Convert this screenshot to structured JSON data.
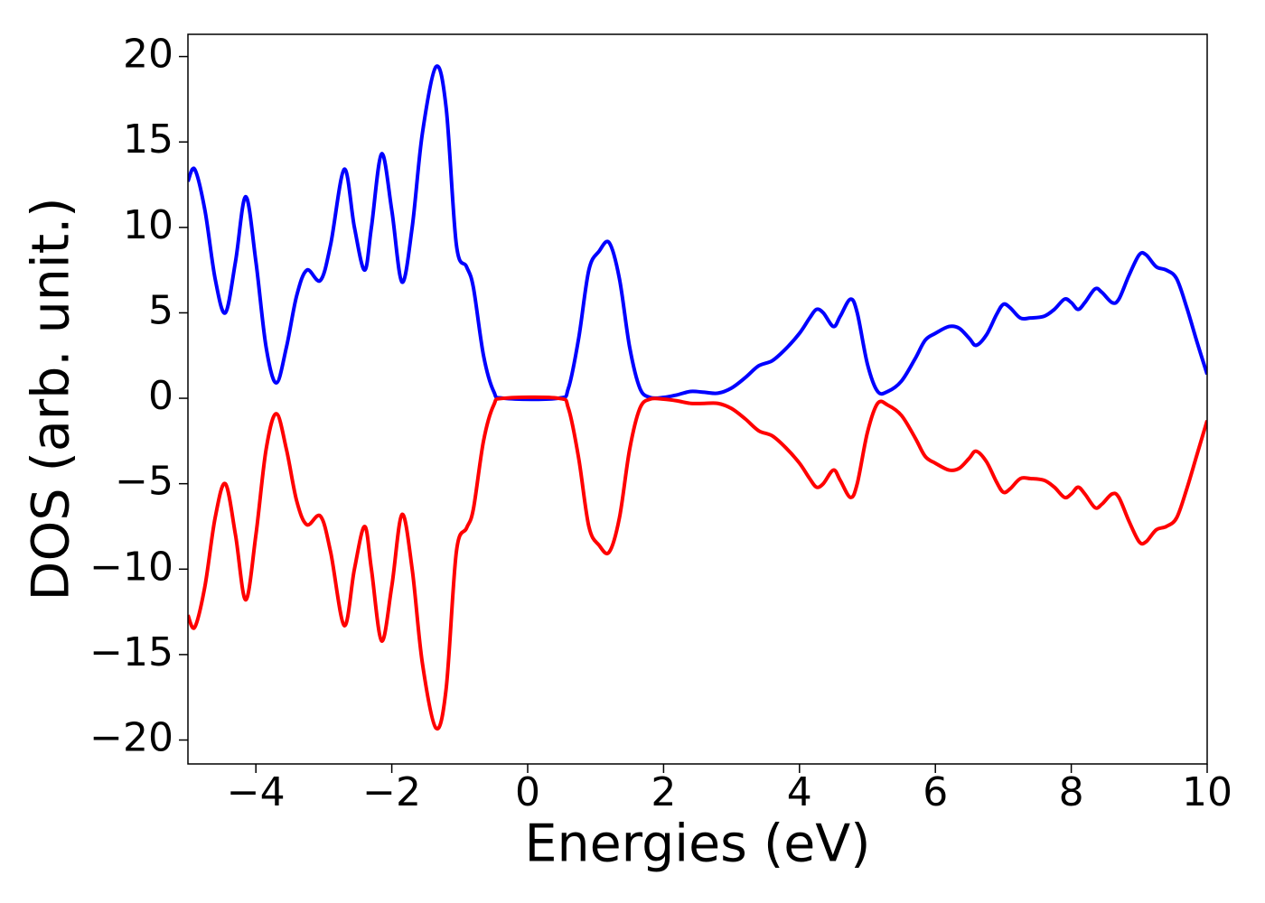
{
  "chart_data": {
    "type": "line",
    "xlabel": "Energies (eV)",
    "ylabel": "DOS (arb. unit.)",
    "x": [
      -5.0,
      -4.9,
      -4.75,
      -4.6,
      -4.45,
      -4.3,
      -4.15,
      -4.0,
      -3.85,
      -3.7,
      -3.55,
      -3.4,
      -3.25,
      -3.05,
      -2.9,
      -2.7,
      -2.55,
      -2.4,
      -2.3,
      -2.15,
      -2.0,
      -1.85,
      -1.7,
      -1.55,
      -1.35,
      -1.2,
      -1.05,
      -0.9,
      -0.8,
      -0.65,
      -0.5,
      -0.35,
      0.45,
      0.6,
      0.75,
      0.9,
      1.05,
      1.2,
      1.35,
      1.5,
      1.65,
      1.8,
      2.0,
      2.2,
      2.4,
      2.6,
      2.8,
      3.0,
      3.2,
      3.4,
      3.6,
      3.8,
      4.0,
      4.15,
      4.25,
      4.35,
      4.5,
      4.6,
      4.75,
      4.85,
      5.0,
      5.15,
      5.3,
      5.5,
      5.7,
      5.85,
      6.0,
      6.2,
      6.35,
      6.5,
      6.6,
      6.75,
      6.9,
      7.0,
      7.1,
      7.25,
      7.4,
      7.6,
      7.75,
      7.9,
      8.0,
      8.1,
      8.2,
      8.35,
      8.45,
      8.6,
      8.7,
      8.85,
      9.0,
      9.1,
      9.25,
      9.4,
      9.55,
      9.7,
      9.85,
      10.0
    ],
    "series": [
      {
        "color": "#0000ff",
        "values": [
          12.7,
          13.4,
          11,
          7,
          5.0,
          8,
          11.8,
          8,
          3,
          0.9,
          3,
          6,
          7.5,
          6.9,
          9,
          13.4,
          10,
          7.5,
          10,
          14.3,
          11,
          6.8,
          10,
          15.5,
          19.4,
          17,
          9,
          7.7,
          6.5,
          2.5,
          0.4,
          0.0,
          0.0,
          0.6,
          3.5,
          7.5,
          8.6,
          9.1,
          7,
          3,
          0.6,
          0.05,
          0.05,
          0.2,
          0.4,
          0.35,
          0.3,
          0.6,
          1.2,
          1.9,
          2.2,
          2.9,
          3.8,
          4.7,
          5.2,
          5.0,
          4.2,
          4.8,
          5.8,
          5.0,
          2.0,
          0.4,
          0.4,
          1.0,
          2.3,
          3.4,
          3.8,
          4.2,
          4.1,
          3.5,
          3.1,
          3.7,
          4.9,
          5.5,
          5.3,
          4.7,
          4.7,
          4.8,
          5.2,
          5.8,
          5.6,
          5.2,
          5.6,
          6.4,
          6.2,
          5.6,
          5.8,
          7.2,
          8.4,
          8.4,
          7.7,
          7.5,
          7.0,
          5.3,
          3.3,
          1.4
        ]
      },
      {
        "color": "#ff0000",
        "values": [
          -12.7,
          -13.4,
          -11,
          -7,
          -5.0,
          -8,
          -11.8,
          -8,
          -3,
          -0.9,
          -3,
          -6,
          -7.4,
          -6.9,
          -9,
          -13.3,
          -10,
          -7.5,
          -10,
          -14.2,
          -11,
          -6.8,
          -10,
          -15.5,
          -19.3,
          -17,
          -9,
          -7.6,
          -6.5,
          -2.5,
          -0.4,
          0.0,
          0.0,
          -0.6,
          -3.5,
          -7.5,
          -8.6,
          -9.0,
          -7,
          -3,
          -0.6,
          -0.05,
          -0.05,
          -0.15,
          -0.3,
          -0.3,
          -0.3,
          -0.6,
          -1.2,
          -1.9,
          -2.2,
          -2.9,
          -3.8,
          -4.7,
          -5.2,
          -5.0,
          -4.2,
          -4.8,
          -5.8,
          -5.0,
          -2.0,
          -0.3,
          -0.4,
          -1.0,
          -2.3,
          -3.4,
          -3.8,
          -4.2,
          -4.1,
          -3.5,
          -3.1,
          -3.7,
          -4.9,
          -5.5,
          -5.3,
          -4.7,
          -4.7,
          -4.8,
          -5.2,
          -5.8,
          -5.6,
          -5.2,
          -5.6,
          -6.4,
          -6.2,
          -5.6,
          -5.8,
          -7.2,
          -8.4,
          -8.4,
          -7.7,
          -7.5,
          -7.0,
          -5.3,
          -3.3,
          -1.3
        ]
      }
    ],
    "xlim": [
      -5,
      10
    ],
    "ylim": [
      -21.4,
      21.3
    ],
    "xticks": [
      {
        "value": -4,
        "label": "−4"
      },
      {
        "value": -2,
        "label": "−2"
      },
      0,
      2,
      4,
      6,
      8,
      10
    ],
    "yticks": [
      {
        "value": -20,
        "label": "−20"
      },
      {
        "value": -15,
        "label": "−15"
      },
      {
        "value": -10,
        "label": "−10"
      },
      {
        "value": -5,
        "label": "−5"
      },
      0,
      5,
      10,
      15,
      20
    ]
  }
}
